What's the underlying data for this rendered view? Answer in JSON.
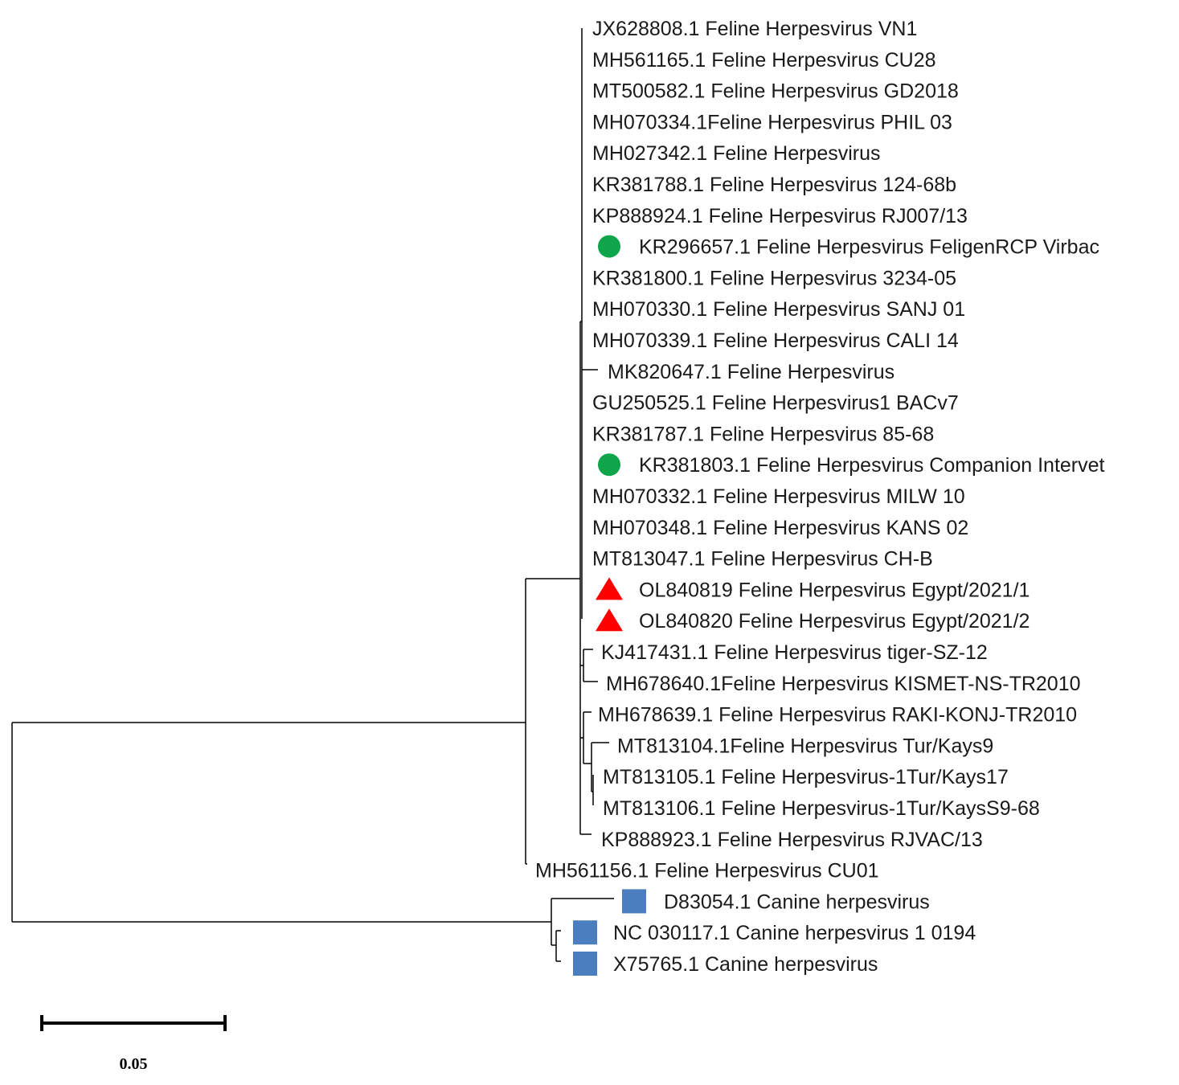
{
  "tree": {
    "leaves": [
      {
        "label": "JX628808.1 Feline Herpesvirus VN1",
        "marker": null
      },
      {
        "label": "MH561165.1 Feline Herpesvirus CU28",
        "marker": null
      },
      {
        "label": "MT500582.1 Feline Herpesvirus GD2018",
        "marker": null
      },
      {
        "label": "MH070334.1Feline Herpesvirus PHIL 03",
        "marker": null
      },
      {
        "label": "MH027342.1 Feline Herpesvirus",
        "marker": null
      },
      {
        "label": "KR381788.1 Feline Herpesvirus 124-68b",
        "marker": null
      },
      {
        "label": "KP888924.1 Feline Herpesvirus RJ007/13",
        "marker": null
      },
      {
        "label": "KR296657.1 Feline Herpesvirus FeligenRCP Virbac",
        "marker": "green-circle"
      },
      {
        "label": "KR381800.1 Feline Herpesvirus 3234-05",
        "marker": null
      },
      {
        "label": "MH070330.1 Feline Herpesvirus SANJ 01",
        "marker": null
      },
      {
        "label": "MH070339.1 Feline Herpesvirus CALI 14",
        "marker": null
      },
      {
        "label": "MK820647.1 Feline Herpesvirus",
        "marker": null
      },
      {
        "label": "GU250525.1 Feline Herpesvirus1 BACv7",
        "marker": null
      },
      {
        "label": "KR381787.1 Feline Herpesvirus 85-68",
        "marker": null
      },
      {
        "label": "KR381803.1 Feline Herpesvirus Companion Intervet",
        "marker": "green-circle"
      },
      {
        "label": "MH070332.1 Feline Herpesvirus MILW 10",
        "marker": null
      },
      {
        "label": "MH070348.1 Feline Herpesvirus KANS 02",
        "marker": null
      },
      {
        "label": "MT813047.1 Feline Herpesvirus CH-B",
        "marker": null
      },
      {
        "label": "OL840819 Feline Herpesvirus Egypt/2021/1",
        "marker": "red-triangle"
      },
      {
        "label": "OL840820 Feline Herpesvirus Egypt/2021/2",
        "marker": "red-triangle"
      },
      {
        "label": "KJ417431.1 Feline Herpesvirus tiger-SZ-12",
        "marker": null
      },
      {
        "label": "MH678640.1Feline Herpesvirus KISMET-NS-TR2010",
        "marker": null
      },
      {
        "label": "MH678639.1 Feline Herpesvirus RAKI-KONJ-TR2010",
        "marker": null
      },
      {
        "label": "MT813104.1Feline Herpesvirus Tur/Kays9",
        "marker": null
      },
      {
        "label": "MT813105.1 Feline Herpesvirus-1Tur/Kays17",
        "marker": null
      },
      {
        "label": "MT813106.1 Feline Herpesvirus-1Tur/KaysS9-68",
        "marker": null
      },
      {
        "label": "KP888923.1 Feline Herpesvirus RJVAC/13",
        "marker": null
      },
      {
        "label": "MH561156.1 Feline Herpesvirus CU01",
        "marker": null
      },
      {
        "label": "D83054.1 Canine herpesvirus",
        "marker": "blue-square"
      },
      {
        "label": "NC 030117.1 Canine herpesvirus 1 0194",
        "marker": "blue-square"
      },
      {
        "label": "X75765.1 Canine herpesvirus",
        "marker": "blue-square"
      }
    ],
    "scale_bar": {
      "value": 0.05,
      "label": "0.05"
    }
  },
  "colors": {
    "green-circle": "#0fa54a",
    "red-triangle": "#ff0000",
    "blue-square": "#4a7ebf",
    "branch": "#000000"
  }
}
